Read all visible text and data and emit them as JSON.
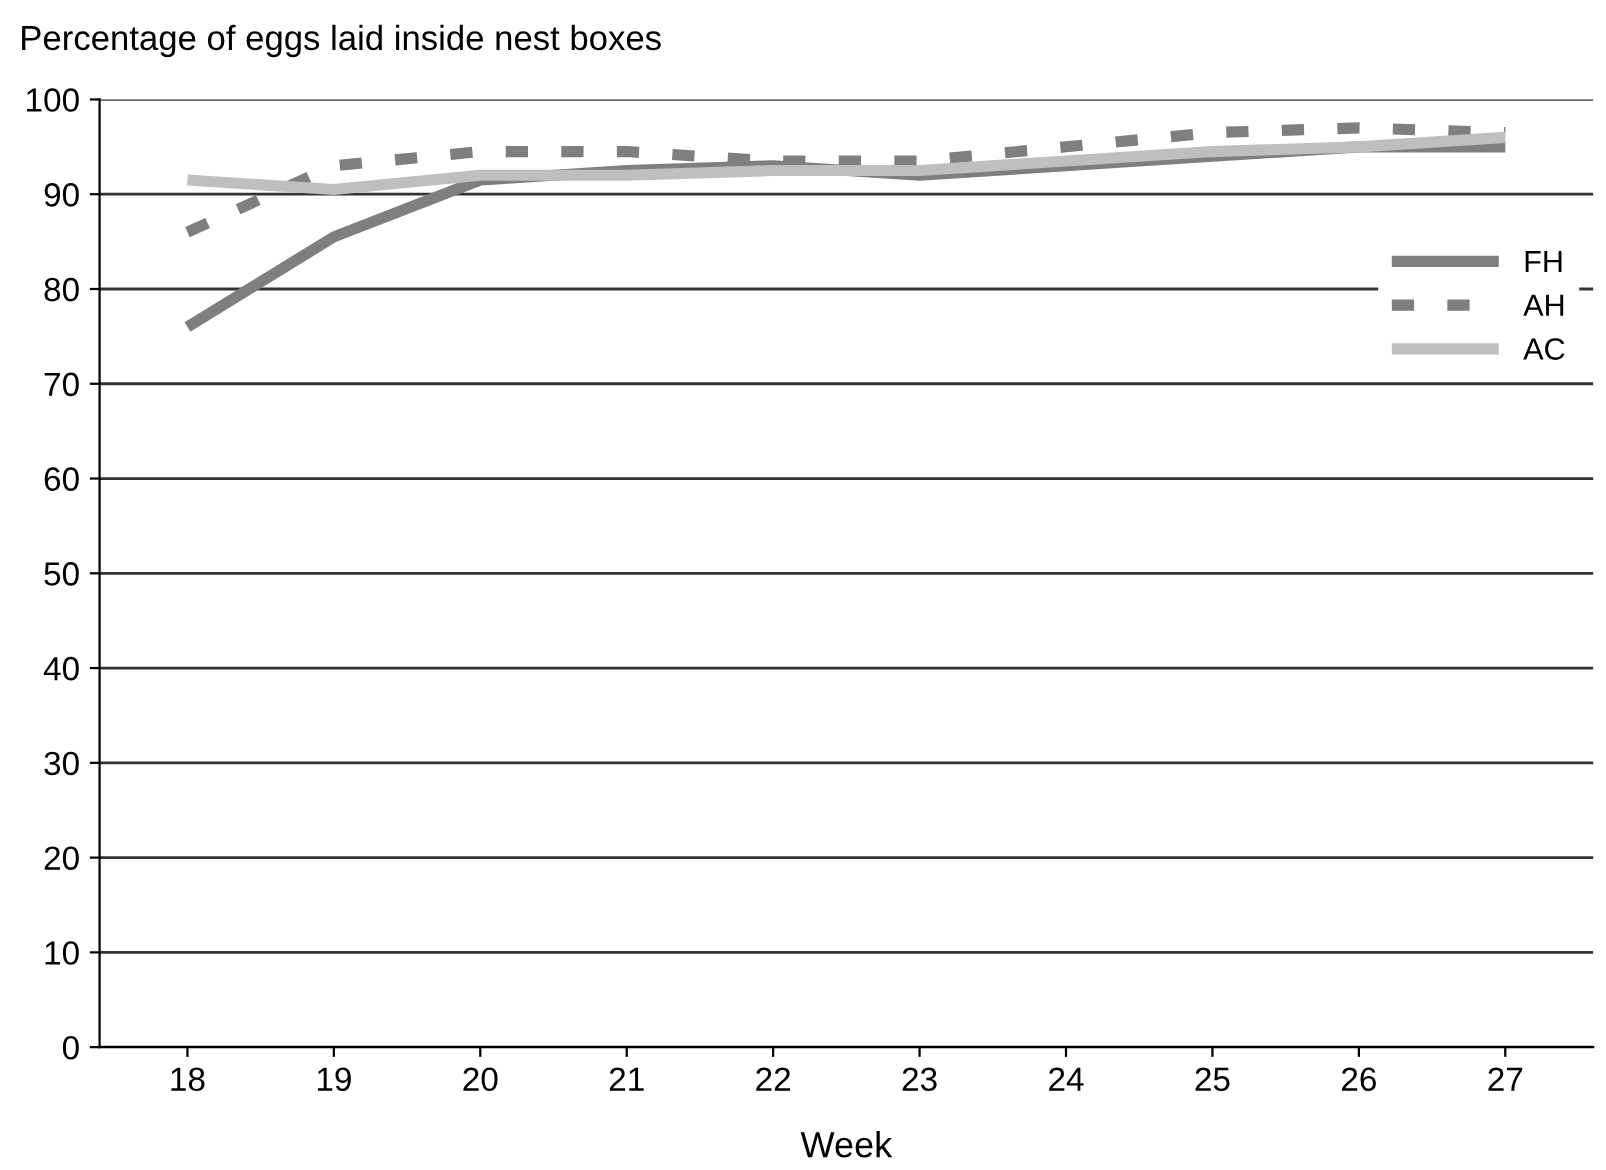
{
  "chart_data": {
    "type": "line",
    "title": "Percentage of eggs laid inside nest boxes",
    "xlabel": "Week",
    "categories": [
      "18",
      "19",
      "20",
      "21",
      "22",
      "23",
      "24",
      "25",
      "26",
      "27"
    ],
    "series": [
      {
        "name": "FH",
        "color": "#7f7f7f",
        "line_style": "solid",
        "values": [
          76,
          85.5,
          91.5,
          92.5,
          93,
          92,
          93,
          94,
          95,
          95
        ]
      },
      {
        "name": "AH",
        "color": "#7f7f7f",
        "line_style": "dashed",
        "values": [
          86,
          93,
          94.5,
          94.5,
          93.5,
          93.5,
          95,
          96.5,
          97,
          96.5
        ]
      },
      {
        "name": "AC",
        "color": "#bfbfbf",
        "line_style": "solid",
        "values": [
          91.5,
          90.5,
          92,
          92,
          92.5,
          92.5,
          93.5,
          94.5,
          95,
          96
        ]
      }
    ],
    "ylim": [
      0,
      100
    ],
    "yticks": [
      0,
      10,
      20,
      30,
      40,
      50,
      60,
      70,
      80,
      90,
      100
    ],
    "grid": "y",
    "legend": "right",
    "marker": "none"
  }
}
